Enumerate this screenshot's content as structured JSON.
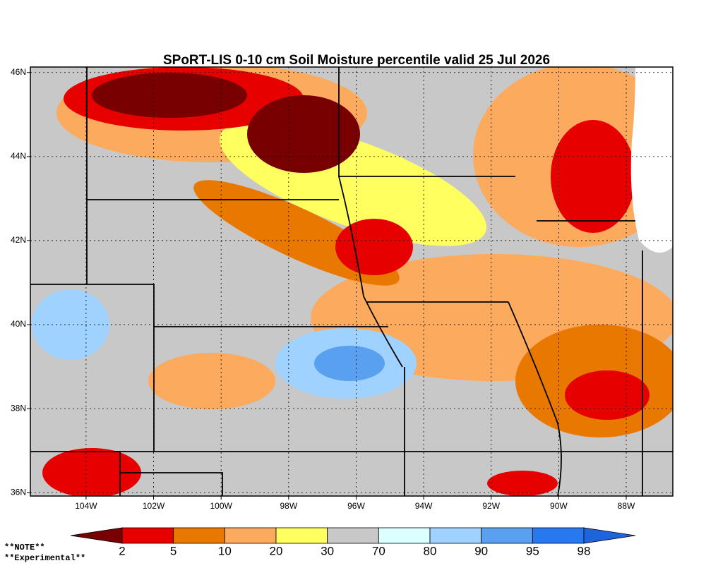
{
  "map": {
    "title": "SPoRT-LIS 0-10 cm Soil Moisture percentile valid 25 Jul 2026",
    "lon_range": [
      -105.65,
      -86.62
    ],
    "lat_range": [
      35.92,
      46.13
    ],
    "lon_ticks": [
      {
        "value": -104,
        "label": "104W"
      },
      {
        "value": -102,
        "label": "102W"
      },
      {
        "value": -100,
        "label": "100W"
      },
      {
        "value": -98,
        "label": "98W"
      },
      {
        "value": -96,
        "label": "96W"
      },
      {
        "value": -94,
        "label": "94W"
      },
      {
        "value": -92,
        "label": "92W"
      },
      {
        "value": -90,
        "label": "90W"
      },
      {
        "value": -88,
        "label": "88W"
      }
    ],
    "lat_ticks": [
      {
        "value": 36,
        "label": "36N"
      },
      {
        "value": 38,
        "label": "38N"
      },
      {
        "value": 40,
        "label": "40N"
      },
      {
        "value": 42,
        "label": "42N"
      },
      {
        "value": 44,
        "label": "44N"
      },
      {
        "value": 46,
        "label": "46N"
      }
    ],
    "colorbar": {
      "colors": [
        "#780000",
        "#e60000",
        "#e87800",
        "#fcaa5e",
        "#ffff60",
        "#c8c8c8",
        "#dcffff",
        "#a0d2ff",
        "#5aa0f0",
        "#2878f0",
        "#1e64dc"
      ],
      "labels": [
        2,
        5,
        10,
        20,
        30,
        70,
        80,
        90,
        95,
        98
      ]
    },
    "notes": [
      "**NOTE**",
      "**Experimental**"
    ]
  }
}
